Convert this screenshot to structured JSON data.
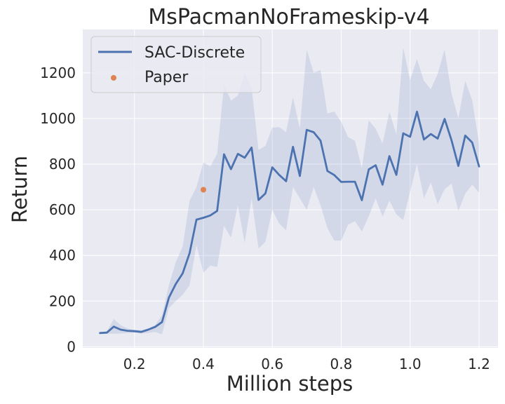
{
  "chart_data": {
    "type": "line",
    "title": "MsPacmanNoFrameskip-v4",
    "xlabel": "Million steps",
    "ylabel": "Return",
    "xlim": [
      0.05,
      1.255
    ],
    "ylim": [
      -5,
      1390
    ],
    "x_ticks": [
      0.2,
      0.4,
      0.6,
      0.8,
      1.0,
      1.2
    ],
    "x_tick_labels": [
      "0.2",
      "0.4",
      "0.6",
      "0.8",
      "1.0",
      "1.2"
    ],
    "y_ticks": [
      0,
      200,
      400,
      600,
      800,
      1000,
      1200
    ],
    "y_tick_labels": [
      "0",
      "200",
      "400",
      "600",
      "800",
      "1000",
      "1200"
    ],
    "grid": true,
    "legend_position": "top-left",
    "colors": {
      "background": "#eaeaf2",
      "grid": "#ffffff",
      "line": "#4c72b0",
      "band": "#4c72b0",
      "paper_point": "#dd8452"
    },
    "series": [
      {
        "name": "SAC-Discrete",
        "kind": "line",
        "x": [
          0.1,
          0.12,
          0.14,
          0.16,
          0.18,
          0.2,
          0.22,
          0.24,
          0.26,
          0.28,
          0.3,
          0.32,
          0.34,
          0.36,
          0.38,
          0.4,
          0.42,
          0.44,
          0.46,
          0.48,
          0.5,
          0.52,
          0.54,
          0.56,
          0.58,
          0.6,
          0.62,
          0.64,
          0.66,
          0.68,
          0.7,
          0.72,
          0.74,
          0.76,
          0.78,
          0.8,
          0.82,
          0.84,
          0.86,
          0.88,
          0.9,
          0.92,
          0.94,
          0.96,
          0.98,
          1.0,
          1.02,
          1.04,
          1.06,
          1.08,
          1.1,
          1.12,
          1.14,
          1.16,
          1.18,
          1.2
        ],
        "y": [
          60,
          62,
          88,
          75,
          70,
          68,
          65,
          75,
          87,
          108,
          215,
          275,
          322,
          410,
          557,
          565,
          575,
          595,
          843,
          778,
          845,
          828,
          873,
          643,
          672,
          786,
          753,
          725,
          876,
          748,
          950,
          940,
          903,
          770,
          752,
          722,
          723,
          723,
          642,
          777,
          795,
          710,
          835,
          753,
          935,
          920,
          1030,
          908,
          932,
          912,
          998,
          905,
          792,
          925,
          895,
          790
        ],
        "upper": [
          62,
          68,
          122,
          95,
          80,
          74,
          72,
          80,
          95,
          138,
          270,
          370,
          440,
          640,
          700,
          808,
          790,
          845,
          1148,
          1078,
          1100,
          1200,
          1135,
          862,
          880,
          960,
          962,
          940,
          1093,
          955,
          1302,
          1200,
          1212,
          1022,
          1030,
          985,
          918,
          902,
          782,
          992,
          955,
          890,
          1030,
          930,
          1310,
          1168,
          1260,
          1165,
          1128,
          1195,
          1302,
          1110,
          1000,
          1165,
          1080,
          890
        ],
        "lower": [
          58,
          57,
          57,
          58,
          60,
          62,
          58,
          60,
          65,
          55,
          170,
          200,
          228,
          270,
          445,
          325,
          355,
          350,
          530,
          478,
          620,
          455,
          650,
          430,
          460,
          600,
          540,
          510,
          700,
          650,
          600,
          700,
          620,
          520,
          465,
          465,
          535,
          550,
          505,
          572,
          650,
          570,
          640,
          580,
          555,
          680,
          800,
          650,
          720,
          625,
          690,
          715,
          595,
          670,
          710,
          675
        ]
      },
      {
        "name": "Paper",
        "kind": "point",
        "x": [
          0.4
        ],
        "y": [
          688
        ]
      }
    ]
  }
}
